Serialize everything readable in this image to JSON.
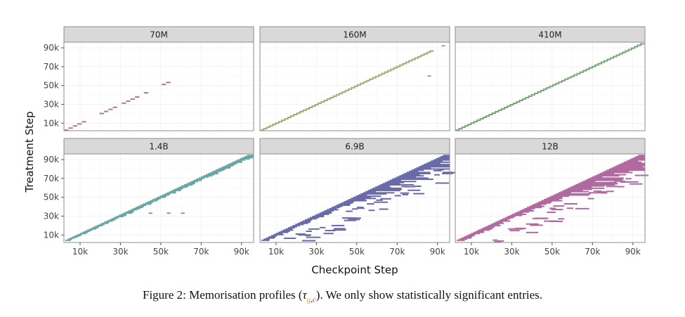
{
  "chart_data": {
    "type": "heatmap",
    "xlabel": "Checkpoint Step",
    "ylabel": "Treatment Step",
    "xlim": [
      2000,
      96000
    ],
    "ylim": [
      2000,
      96000
    ],
    "x_ticks": [
      10000,
      30000,
      50000,
      70000,
      90000
    ],
    "x_tick_labels": [
      "10k",
      "30k",
      "50k",
      "70k",
      "90k"
    ],
    "y_ticks": [
      10000,
      30000,
      50000,
      70000,
      90000
    ],
    "y_tick_labels": [
      "10k",
      "30k",
      "50k",
      "70k",
      "90k"
    ],
    "grid": true,
    "legend": "none",
    "facets": [
      {
        "label": "70M",
        "color": "#b07a86",
        "density": "sparse-diagonal",
        "diagonal_gaps": [
          [
            12000,
            20000
          ],
          [
            28000,
            31000
          ],
          [
            39000,
            41000
          ],
          [
            44000,
            50000
          ],
          [
            55000,
            96000
          ]
        ],
        "off_diagonal": []
      },
      {
        "label": "160M",
        "color": "#a8a878",
        "density": "diagonal",
        "diagonal_gaps": [
          [
            88000,
            96000
          ]
        ],
        "off_diagonal": [
          [
            85000,
            60000
          ],
          [
            92000,
            92000
          ]
        ]
      },
      {
        "label": "410M",
        "color": "#78a478",
        "density": "diagonal",
        "diagonal_gaps": [],
        "off_diagonal": []
      },
      {
        "label": "1.4B",
        "color": "#6aa5a5",
        "density": "band",
        "band_depth": 6000,
        "off_diagonal": [
          [
            34000,
            33000
          ],
          [
            44000,
            33000
          ],
          [
            53000,
            33000
          ],
          [
            60000,
            33000
          ]
        ]
      },
      {
        "label": "6.9B",
        "color": "#6a6aa8",
        "density": "wide-band",
        "band_depth": 12000,
        "off_diagonal": []
      },
      {
        "label": "12B",
        "color": "#b06aa0",
        "density": "wide-band",
        "band_depth": 14000,
        "off_diagonal": []
      }
    ]
  },
  "caption": {
    "prefix": "Figure 2: Memorisation profiles (",
    "tau": "τ",
    "sub_g": "g",
    "sub_comma": ",",
    "sub_c": "c",
    "suffix": "). We only show statistically significant entries."
  }
}
